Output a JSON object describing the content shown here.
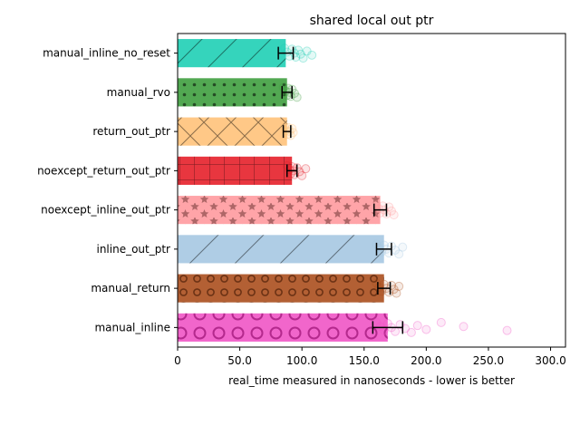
{
  "chart_data": {
    "type": "bar",
    "orientation": "horizontal",
    "title": "shared local out ptr",
    "xlabel": "real_time measured in nanoseconds - lower is better",
    "ylabel": "",
    "xlim": [
      0,
      312
    ],
    "xticks": [
      0,
      50,
      100,
      150,
      200,
      250,
      300
    ],
    "xtick_labels": [
      "0",
      "50.0",
      "100.0",
      "150.0",
      "200.0",
      "250.0",
      "300.0"
    ],
    "grid": false,
    "series": [
      {
        "name": "manual_inline_no_reset",
        "value": 87,
        "err": 6,
        "color": "#1fcfb5",
        "hatch": "diagonal",
        "scatter": [
          86,
          88,
          90,
          92,
          94,
          95,
          97,
          99,
          101,
          104,
          108
        ]
      },
      {
        "name": "manual_rvo",
        "value": 88,
        "err": 4,
        "color": "#3f9f3f",
        "hatch": "dots",
        "scatter": [
          85,
          87,
          88,
          89,
          90,
          91,
          92,
          94,
          96
        ]
      },
      {
        "name": "return_out_ptr",
        "value": 88,
        "err": 3,
        "color": "#ffc27a",
        "hatch": "crosshatch",
        "scatter": [
          86,
          87,
          88,
          89,
          90,
          91,
          92,
          93
        ]
      },
      {
        "name": "noexcept_return_out_ptr",
        "value": 92,
        "err": 4,
        "color": "#e5202a",
        "hatch": "grid",
        "scatter": [
          88,
          90,
          91,
          92,
          93,
          94,
          96,
          98,
          100,
          103
        ]
      },
      {
        "name": "noexcept_inline_out_ptr",
        "value": 163,
        "err": 5,
        "color": "#ff9a9e",
        "hatch": "stars",
        "scatter": [
          160,
          162,
          163,
          165,
          166,
          168,
          170,
          172,
          174
        ]
      },
      {
        "name": "inline_out_ptr",
        "value": 166,
        "err": 6,
        "color": "#a6c8e2",
        "hatch": "diagonal-wide",
        "scatter": [
          160,
          162,
          164,
          166,
          168,
          170,
          172,
          175,
          178,
          181
        ]
      },
      {
        "name": "manual_return",
        "value": 166,
        "err": 5,
        "color": "#ab4f1e",
        "hatch": "rings-small",
        "scatter": [
          160,
          162,
          164,
          166,
          168,
          170,
          172,
          174,
          176,
          178
        ]
      },
      {
        "name": "manual_inline",
        "value": 169,
        "err": 12,
        "color": "#f055c5",
        "hatch": "rings-large",
        "scatter": [
          160,
          163,
          166,
          169,
          172,
          175,
          179,
          183,
          188,
          193,
          200,
          212,
          230,
          265
        ]
      }
    ]
  }
}
